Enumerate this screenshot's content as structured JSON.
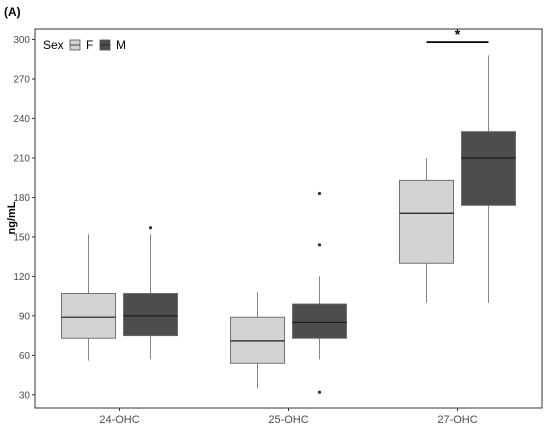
{
  "chart_data": {
    "type": "box",
    "panel_label": "(A)",
    "xlabel": "",
    "ylabel": "ng/mL",
    "ylim": [
      20,
      308
    ],
    "yticks": [
      30,
      60,
      90,
      120,
      150,
      180,
      210,
      240,
      270,
      300
    ],
    "grid": false,
    "legend": {
      "title": "Sex",
      "placement": "top-left"
    },
    "categories": [
      "24-OHC",
      "25-OHC",
      "27-OHC"
    ],
    "series": [
      {
        "name": "F",
        "color": "#d3d3d3",
        "boxes": [
          {
            "whisker_low": 56,
            "q1": 73,
            "median": 89,
            "q3": 107,
            "whisker_high": 152,
            "outliers": []
          },
          {
            "whisker_low": 35,
            "q1": 54,
            "median": 71,
            "q3": 89,
            "whisker_high": 108,
            "outliers": []
          },
          {
            "whisker_low": 100,
            "q1": 130,
            "median": 168,
            "q3": 193,
            "whisker_high": 210,
            "outliers": []
          }
        ]
      },
      {
        "name": "M",
        "color": "#4d4d4d",
        "boxes": [
          {
            "whisker_low": 57,
            "q1": 75,
            "median": 90,
            "q3": 107,
            "whisker_high": 152,
            "outliers": [
              157
            ]
          },
          {
            "whisker_low": 57,
            "q1": 73,
            "median": 85,
            "q3": 99,
            "whisker_high": 120,
            "outliers": [
              32,
              144,
              183
            ]
          },
          {
            "whisker_low": 100,
            "q1": 174,
            "median": 210,
            "q3": 230,
            "whisker_high": 288,
            "outliers": []
          }
        ]
      }
    ],
    "annotations": [
      {
        "text": "*",
        "category": "27-OHC",
        "y": 298
      }
    ]
  }
}
